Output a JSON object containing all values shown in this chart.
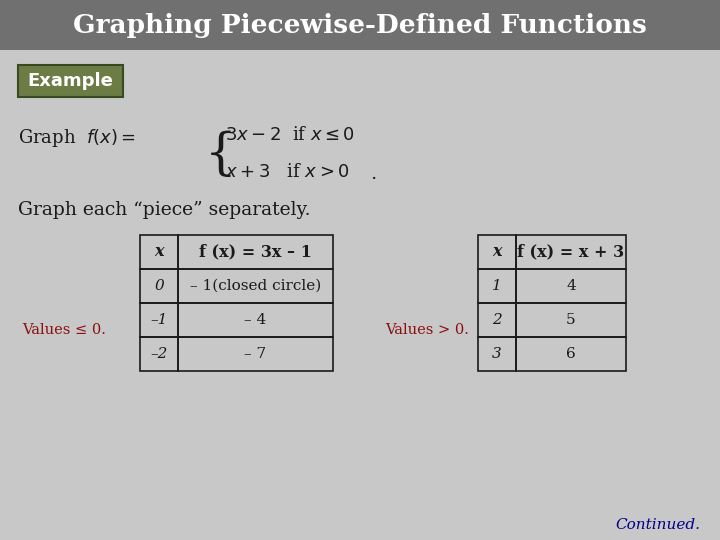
{
  "title": "Graphing Piecewise-Defined Functions",
  "title_color": "#FFFFFF",
  "bg_color": "#C8C8C8",
  "title_bg_color": "#707070",
  "example_label": "Example",
  "example_bg": "#6B7C45",
  "example_text_color": "#FFFFFF",
  "graph_text": "Graph each “piece” separately.",
  "graph_text_color": "#1a1a1a",
  "values_le_text": "Values ≤ 0.",
  "values_gt_text": "Values > 0.",
  "values_color": "#8B1010",
  "continued_text": "Continued.",
  "continued_color": "#00008B",
  "table1_header_x": "x",
  "table1_header_fx": "f (x) = 3x – 1",
  "table1_rows": [
    [
      "0",
      "– 1(closed circle)"
    ],
    [
      "–1",
      "– 4"
    ],
    [
      "–2",
      "– 7"
    ]
  ],
  "table2_header_x": "x",
  "table2_header_fx": "f (x) = x + 3",
  "table2_rows": [
    [
      "1",
      "4"
    ],
    [
      "2",
      "5"
    ],
    [
      "3",
      "6"
    ]
  ]
}
